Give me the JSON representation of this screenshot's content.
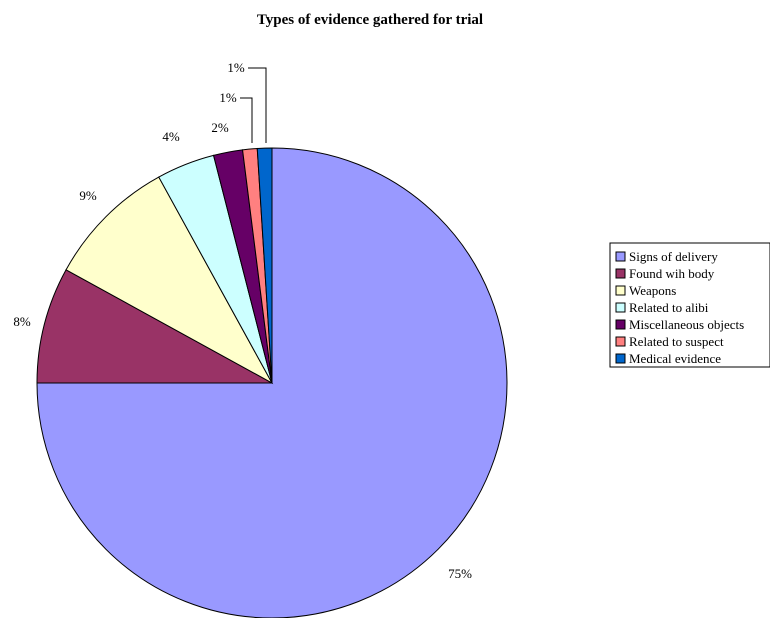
{
  "chart_data": {
    "type": "pie",
    "title": "Types of evidence gathered for trial",
    "legend_position": "right",
    "slices": [
      {
        "label": "Signs of delivery",
        "value": 75,
        "display": "75%",
        "color": "#9999ff"
      },
      {
        "label": "Found wih body",
        "value": 8,
        "display": "8%",
        "color": "#993366"
      },
      {
        "label": "Weapons",
        "value": 9,
        "display": "9%",
        "color": "#ffffcc"
      },
      {
        "label": "Related to alibi",
        "value": 4,
        "display": "4%",
        "color": "#ccffff"
      },
      {
        "label": "Miscellaneous objects",
        "value": 2,
        "display": "2%",
        "color": "#660066"
      },
      {
        "label": "Related to suspect",
        "value": 1,
        "display": "1%",
        "color": "#ff8080"
      },
      {
        "label": "Medical evidence",
        "value": 1,
        "display": "1%",
        "color": "#0066cc"
      }
    ]
  }
}
